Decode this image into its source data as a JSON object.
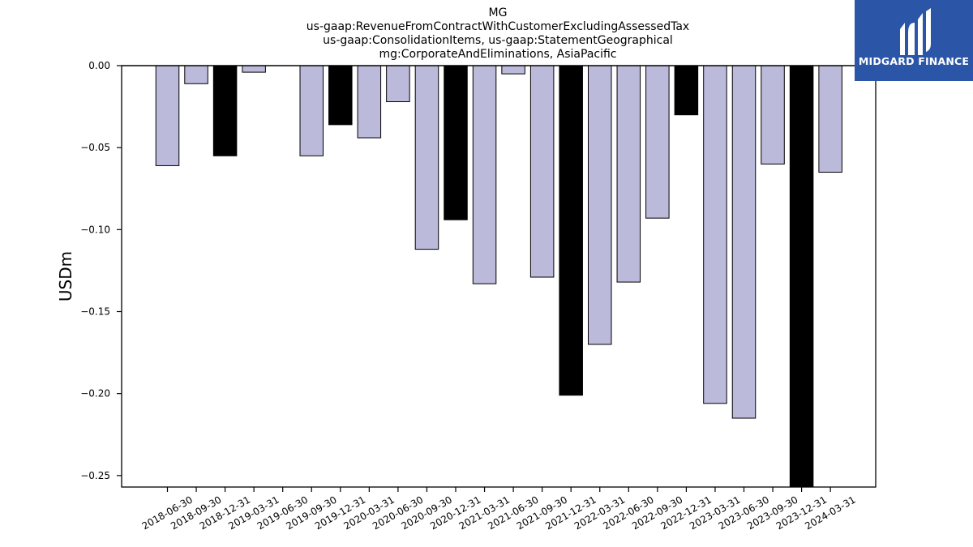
{
  "chart_data": {
    "type": "bar",
    "title_lines": [
      "MG",
      "us-gaap:RevenueFromContractWithCustomerExcludingAssessedTax",
      "us-gaap:ConsolidationItems, us-gaap:StatementGeographical",
      "mg:CorporateAndEliminations, AsiaPacific"
    ],
    "xlabel": "",
    "ylabel": "USDm",
    "ylim": [
      -0.257,
      0.0
    ],
    "yticks": [
      0.0,
      -0.05,
      -0.1,
      -0.15,
      -0.2,
      -0.25
    ],
    "ytick_labels": [
      "0.00",
      "−0.05",
      "−0.10",
      "−0.15",
      "−0.20",
      "−0.25"
    ],
    "categories": [
      "2018-06-30",
      "2018-09-30",
      "2018-12-31",
      "2019-03-31",
      "2019-06-30",
      "2019-09-30",
      "2019-12-31",
      "2020-03-31",
      "2020-06-30",
      "2020-09-30",
      "2020-12-31",
      "2021-03-31",
      "2021-06-30",
      "2021-09-30",
      "2021-12-31",
      "2022-03-31",
      "2022-06-30",
      "2022-09-30",
      "2022-12-31",
      "2023-03-31",
      "2023-06-30",
      "2023-09-30",
      "2023-12-31",
      "2024-03-31"
    ],
    "values": [
      -0.061,
      -0.011,
      -0.055,
      -0.004,
      0.0,
      -0.055,
      -0.036,
      -0.044,
      -0.022,
      -0.112,
      -0.094,
      -0.133,
      -0.005,
      -0.129,
      -0.201,
      -0.17,
      -0.132,
      -0.093,
      -0.03,
      -0.206,
      -0.215,
      -0.06,
      -0.26,
      -0.065
    ],
    "bar_colors": [
      "#bcbadb",
      "#bcbadb",
      "#000000",
      "#bcbadb",
      "#bcbadb",
      "#bcbadb",
      "#000000",
      "#bcbadb",
      "#bcbadb",
      "#bcbadb",
      "#000000",
      "#bcbadb",
      "#bcbadb",
      "#bcbadb",
      "#000000",
      "#bcbadb",
      "#bcbadb",
      "#bcbadb",
      "#000000",
      "#bcbadb",
      "#bcbadb",
      "#bcbadb",
      "#000000",
      "#bcbadb"
    ],
    "grid": false,
    "legend": "none"
  },
  "logo": {
    "text": "MIDGARD FINANCE",
    "background": "#2b56a8",
    "icon": "midgard-logo-mark"
  }
}
